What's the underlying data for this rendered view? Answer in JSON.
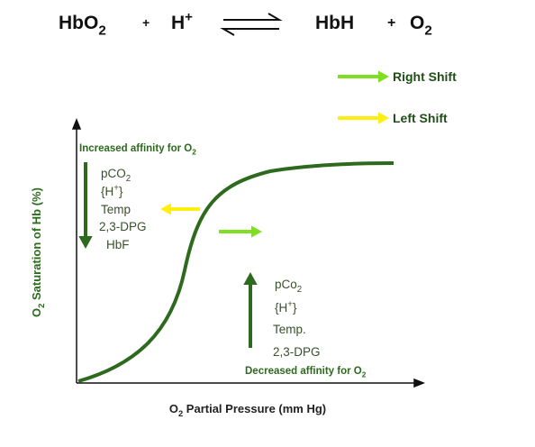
{
  "equation": {
    "terms": [
      [
        {
          "text": "HbO"
        },
        {
          "sub": "2"
        }
      ],
      "+",
      [
        {
          "text": "H"
        },
        {
          "sup": "+"
        }
      ],
      "HbH",
      "+",
      [
        {
          "text": "O"
        },
        {
          "sub": "2"
        }
      ]
    ]
  },
  "legend": [
    {
      "label": "Right Shift",
      "color": "#7ee021"
    },
    {
      "label": "Left Shift",
      "color": "#ffee10"
    }
  ],
  "axes": {
    "y_label": [
      {
        "text": "O"
      },
      {
        "sub": "2"
      },
      {
        "text": " Saturation of Hb (%)"
      }
    ],
    "x_label": [
      {
        "text": "O"
      },
      {
        "sub": "2"
      },
      {
        "text": " Partial Pressure (mm Hg)"
      }
    ]
  },
  "left_group": {
    "title": [
      {
        "text": "Increased affinity for O"
      },
      {
        "sub": "2"
      }
    ],
    "factors": [
      [
        {
          "text": "pCO"
        },
        {
          "sub": "2"
        }
      ],
      [
        {
          "text": "{H"
        },
        {
          "sup": "+"
        },
        {
          "text": "}"
        }
      ],
      "Temp",
      "2,3-DPG",
      "HbF"
    ]
  },
  "right_group": {
    "title": [
      {
        "text": "Decreased affinity for O"
      },
      {
        "sub": "2"
      }
    ],
    "factors": [
      [
        {
          "text": "pCo"
        },
        {
          "sub": "2"
        }
      ],
      [
        {
          "text": "{H"
        },
        {
          "sup": "+"
        },
        {
          "text": "}"
        }
      ],
      "Temp.",
      "2,3-DPG"
    ]
  }
}
